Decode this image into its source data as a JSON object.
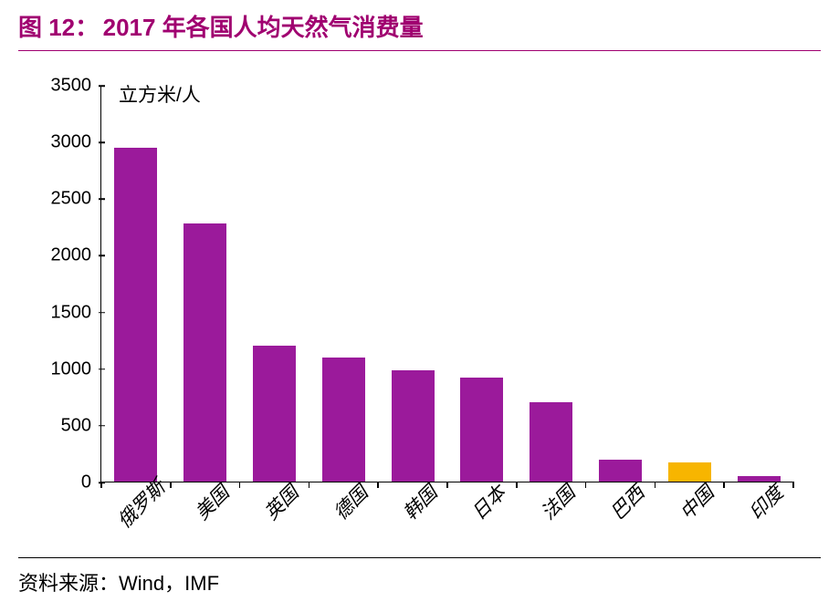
{
  "figure_label": "图 12：",
  "figure_title": "2017 年各国人均天然气消费量",
  "title_color": "#a00070",
  "title_fontsize": 26,
  "source_prefix": "资料来源：",
  "source_value": "Wind，IMF",
  "chart": {
    "type": "bar",
    "unit_label": "立方米/人",
    "categories": [
      "俄罗斯",
      "美国",
      "英国",
      "德国",
      "韩国",
      "日本",
      "法国",
      "巴西",
      "中国",
      "印度"
    ],
    "values": [
      2950,
      2280,
      1200,
      1100,
      980,
      920,
      700,
      190,
      170,
      50
    ],
    "bar_colors": [
      "#9b1a9b",
      "#9b1a9b",
      "#9b1a9b",
      "#9b1a9b",
      "#9b1a9b",
      "#9b1a9b",
      "#9b1a9b",
      "#9b1a9b",
      "#f7b500",
      "#9b1a9b"
    ],
    "highlight_color": "#f7b500",
    "primary_color": "#9b1a9b",
    "ylim": [
      0,
      3500
    ],
    "ytick_step": 500,
    "yticks": [
      0,
      500,
      1000,
      1500,
      2000,
      2500,
      3000,
      3500
    ],
    "axis_color": "#000000",
    "background_color": "#ffffff",
    "label_fontsize": 20,
    "xlabel_fontsize": 21,
    "bar_width": 0.62,
    "xlabel_rotation": -45
  }
}
